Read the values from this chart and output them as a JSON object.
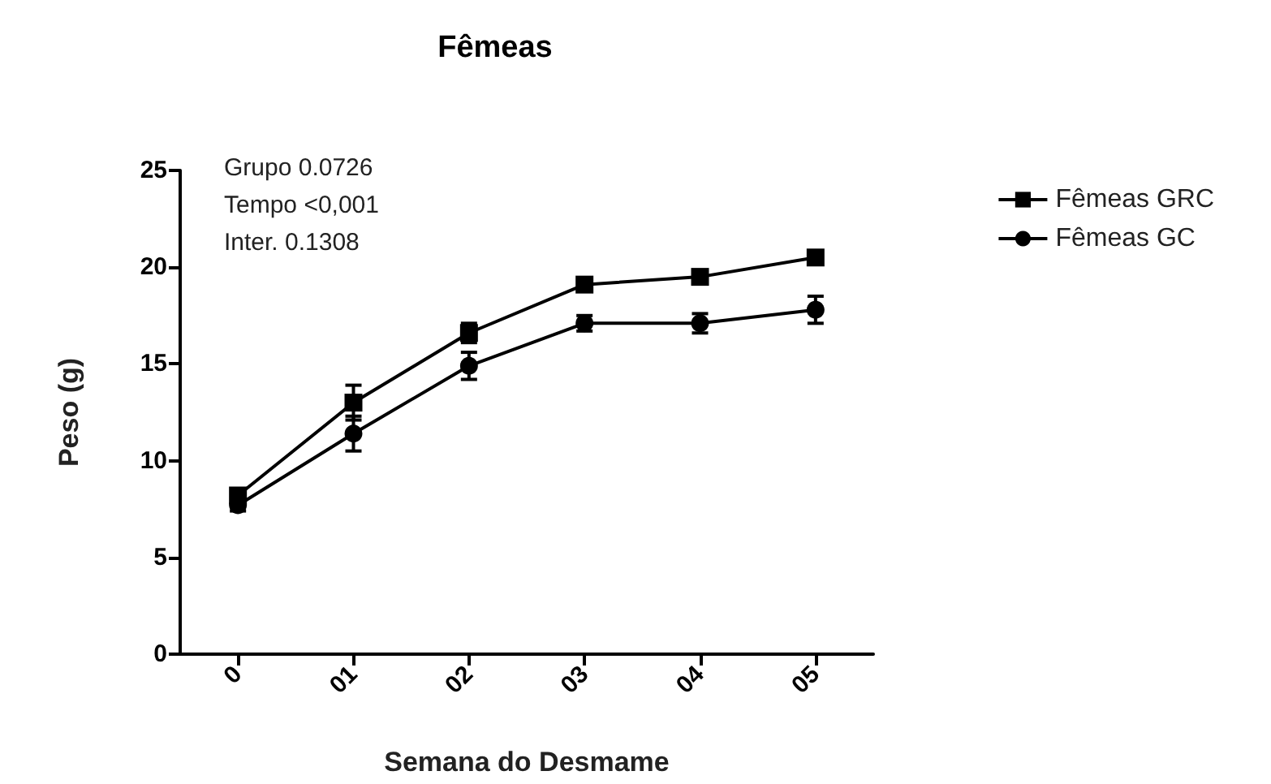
{
  "chart_data": {
    "type": "line",
    "title": "Fêmeas",
    "xlabel": "Semana do Desmame",
    "ylabel": "Peso (g)",
    "categories": [
      "0",
      "01",
      "02",
      "03",
      "04",
      "05"
    ],
    "series": [
      {
        "name": "Fêmeas GRC",
        "color": "#000000",
        "marker": "square",
        "values": [
          8.2,
          13.0,
          16.6,
          19.1,
          19.5,
          20.5
        ],
        "errors": [
          0.3,
          0.9,
          0.5,
          0.3,
          0.3,
          0.3
        ]
      },
      {
        "name": "Fêmeas GC",
        "color": "#000000",
        "marker": "circle",
        "values": [
          7.7,
          11.4,
          14.9,
          17.1,
          17.1,
          17.8
        ],
        "errors": [
          0.3,
          0.9,
          0.7,
          0.4,
          0.5,
          0.7
        ]
      }
    ],
    "ylim": [
      0,
      25
    ],
    "yticks": [
      0,
      5,
      10,
      15,
      20,
      25
    ],
    "grid": false,
    "legend": "right",
    "line_style": "solid",
    "annotations": [
      "Grupo 0.0726",
      "Tempo <0,001",
      "Inter. 0.1308"
    ]
  }
}
